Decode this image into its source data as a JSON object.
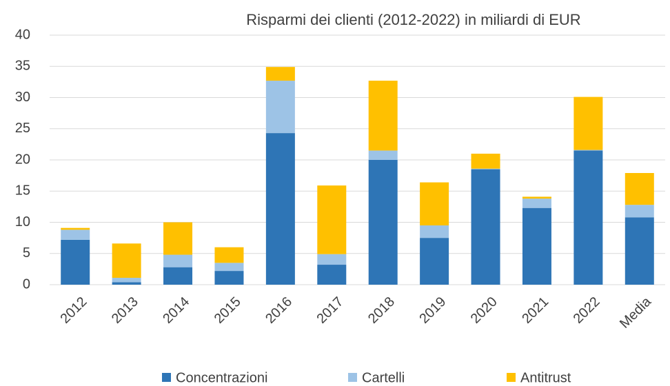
{
  "chart_data": {
    "type": "stacked_bar",
    "title": "Risparmi dei clienti (2012-2022) in miliardi di EUR",
    "categories": [
      "2012",
      "2013",
      "2014",
      "2015",
      "2016",
      "2017",
      "2018",
      "2019",
      "2020",
      "2021",
      "2022",
      "Media"
    ],
    "series": [
      {
        "name": "Concentrazioni",
        "color": "#2e75b6",
        "values": [
          7.2,
          0.4,
          2.8,
          2.2,
          24.3,
          3.2,
          20.0,
          7.5,
          18.5,
          12.3,
          21.5,
          10.8
        ]
      },
      {
        "name": "Cartelli",
        "color": "#9dc3e6",
        "values": [
          1.6,
          0.7,
          2.0,
          1.3,
          8.4,
          1.7,
          1.5,
          2.0,
          0.1,
          1.5,
          0.1,
          2.0
        ]
      },
      {
        "name": "Antitrust",
        "color": "#ffc000",
        "values": [
          0.3,
          5.5,
          5.2,
          2.5,
          2.2,
          11.0,
          11.2,
          6.9,
          2.4,
          0.3,
          8.5,
          5.1
        ]
      }
    ],
    "ylim": [
      0,
      40
    ],
    "yticks": [
      0,
      5,
      10,
      15,
      20,
      25,
      30,
      35,
      40
    ],
    "grid": true,
    "legend": "bottom"
  }
}
